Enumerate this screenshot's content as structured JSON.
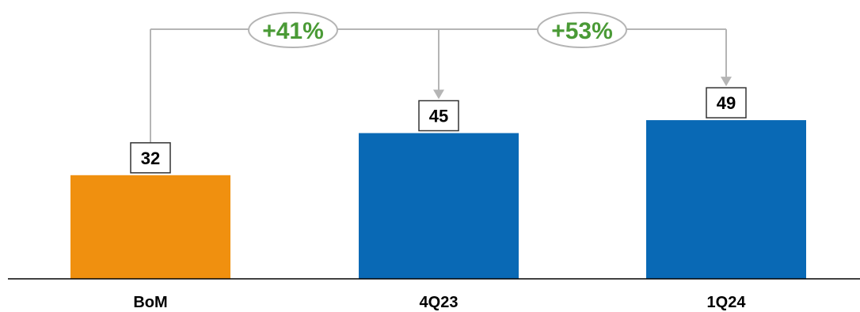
{
  "chart_data": {
    "type": "bar",
    "categories": [
      "BoM",
      "4Q23",
      "1Q24"
    ],
    "values": [
      32,
      45,
      49
    ],
    "bar_colors": [
      "#f0900f",
      "#0969b5",
      "#0969b5"
    ],
    "title": "",
    "xlabel": "",
    "ylabel": "",
    "ylim": [
      0,
      55
    ],
    "grid": false,
    "legend": "none",
    "annotations": [
      {
        "from": "BoM",
        "to": "4Q23",
        "label": "+41%"
      },
      {
        "from": "4Q23",
        "to": "1Q24",
        "label": "+53%"
      }
    ]
  },
  "colors": {
    "bom_bar": "#f0900f",
    "quarter_bar": "#0969b5",
    "growth_text": "#4a9a36",
    "connector": "#b5b5b5",
    "axis": "#000000"
  }
}
